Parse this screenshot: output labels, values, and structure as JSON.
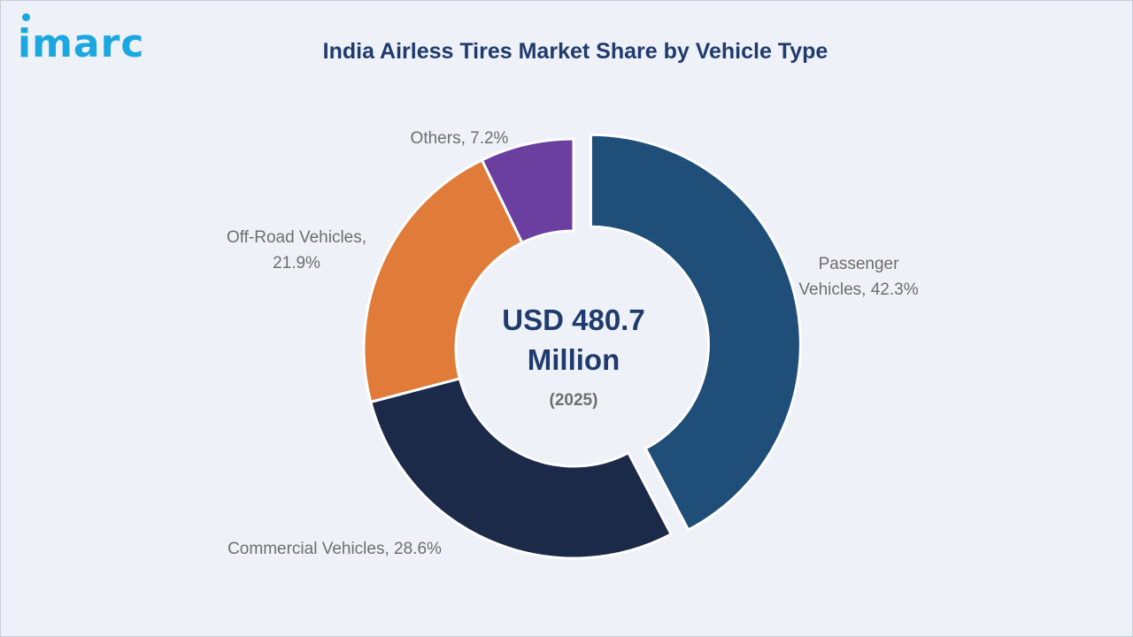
{
  "logo": {
    "text": "imarc",
    "color": "#1ba7e0"
  },
  "chart_data": {
    "type": "pie",
    "style": "donut",
    "title": "India Airless Tires Market Share by Vehicle Type",
    "title_color": "#1f3b6e",
    "center": {
      "value_line1": "USD 480.7",
      "value_line2": "Million",
      "year": "(2025)",
      "color": "#1f3b6e"
    },
    "slices": [
      {
        "name": "Passenger Vehicles",
        "value": 42.3,
        "label_lines": [
          "Passenger",
          "Vehicles, 42.3%"
        ],
        "color": "#1f4e79",
        "exploded": true
      },
      {
        "name": "Commercial Vehicles",
        "value": 28.6,
        "label_lines": [
          "Commercial Vehicles, 28.6%"
        ],
        "color": "#1c2a4a",
        "exploded": false
      },
      {
        "name": "Off-Road Vehicles",
        "value": 21.9,
        "label_lines": [
          "Off-Road Vehicles,",
          "21.9%"
        ],
        "color": "#e07b39",
        "exploded": false
      },
      {
        "name": "Others",
        "value": 7.2,
        "label_lines": [
          "Others, 7.2%"
        ],
        "color": "#6b3fa0",
        "exploded": false
      }
    ]
  }
}
